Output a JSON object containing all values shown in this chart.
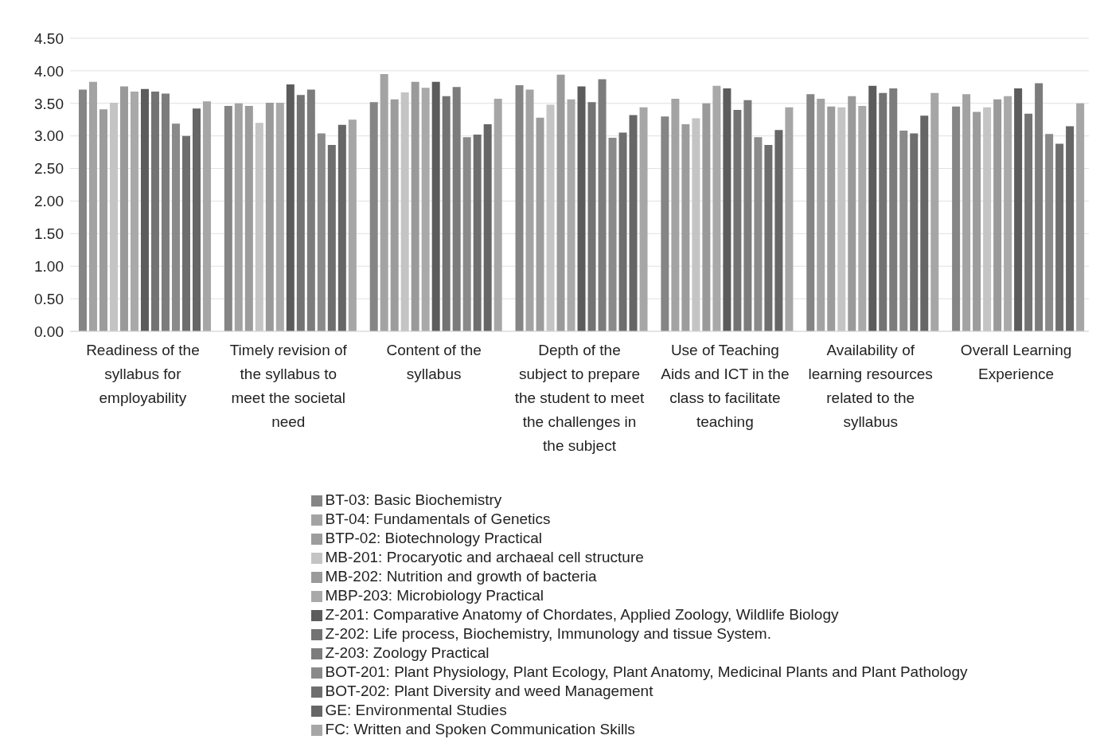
{
  "chart_data": {
    "type": "bar",
    "categories": [
      "Readiness of the syllabus for employability",
      "Timely revision of the syllabus to meet the societal need",
      "Content of the syllabus",
      "Depth of the subject to prepare the student to meet the challenges in the subject",
      "Use of Teaching Aids and ICT in the class to facilitate teaching",
      "Availability of learning resources related to the syllabus",
      "Overall Learning Experience"
    ],
    "ylim": [
      0,
      4.5
    ],
    "yticks": [
      {
        "value": 0,
        "label": "0.00"
      },
      {
        "value": 0.5,
        "label": "0.50"
      },
      {
        "value": 1,
        "label": "1.00"
      },
      {
        "value": 1.5,
        "label": "1.50"
      },
      {
        "value": 2,
        "label": "2.00"
      },
      {
        "value": 2.5,
        "label": "2.50"
      },
      {
        "value": 3,
        "label": "3.00"
      },
      {
        "value": 3.5,
        "label": "3.50"
      },
      {
        "value": 4,
        "label": "4.00"
      },
      {
        "value": 4.5,
        "label": "4.50"
      }
    ],
    "grid": "y",
    "legend": "bottom",
    "series": [
      {
        "name": "BT-03: Basic Biochemistry",
        "color": "#858585",
        "values": [
          3.71,
          3.46,
          3.52,
          3.78,
          3.3,
          3.64,
          3.45
        ]
      },
      {
        "name": "BT-04: Fundamentals of Genetics",
        "color": "#a3a3a3",
        "values": [
          3.83,
          3.5,
          3.95,
          3.71,
          3.57,
          3.57,
          3.64
        ]
      },
      {
        "name": "BTP-02: Biotechnology Practical",
        "color": "#9c9c9c",
        "values": [
          3.41,
          3.46,
          3.56,
          3.28,
          3.18,
          3.45,
          3.37
        ]
      },
      {
        "name": "MB-201: Procaryotic and archaeal cell structure",
        "color": "#c4c4c4",
        "values": [
          3.51,
          3.2,
          3.67,
          3.48,
          3.27,
          3.44,
          3.44
        ]
      },
      {
        "name": "MB-202: Nutrition and growth of bacteria",
        "color": "#9a9a9a",
        "values": [
          3.76,
          3.51,
          3.83,
          3.94,
          3.5,
          3.61,
          3.56
        ]
      },
      {
        "name": "MBP-203: Microbiology Practical",
        "color": "#a9a9a9",
        "values": [
          3.68,
          3.51,
          3.74,
          3.56,
          3.77,
          3.46,
          3.61
        ]
      },
      {
        "name": "Z-201: Comparative Anatomy of Chordates, Applied Zoology, Wildlife Biology",
        "color": "#5c5c5c",
        "values": [
          3.72,
          3.79,
          3.83,
          3.76,
          3.73,
          3.77,
          3.73
        ]
      },
      {
        "name": "Z-202: Life process, Biochemistry, Immunology and tissue System.",
        "color": "#737373",
        "values": [
          3.68,
          3.63,
          3.61,
          3.52,
          3.4,
          3.66,
          3.34
        ]
      },
      {
        "name": "Z-203: Zoology Practical",
        "color": "#7c7c7c",
        "values": [
          3.65,
          3.71,
          3.75,
          3.87,
          3.55,
          3.73,
          3.81
        ]
      },
      {
        "name": "BOT-201: Plant Physiology, Plant Ecology, Plant Anatomy, Medicinal Plants and Plant Pathology",
        "color": "#8a8a8a",
        "values": [
          3.19,
          3.04,
          2.98,
          2.97,
          2.98,
          3.08,
          3.03
        ]
      },
      {
        "name": "BOT-202: Plant Diversity and weed Management",
        "color": "#6e6e6e",
        "values": [
          3.0,
          2.86,
          3.02,
          3.05,
          2.86,
          3.04,
          2.88
        ]
      },
      {
        "name": "GE: Environmental Studies",
        "color": "#666666",
        "values": [
          3.42,
          3.17,
          3.18,
          3.32,
          3.09,
          3.31,
          3.15
        ]
      },
      {
        "name": "FC: Written and Spoken Communication Skills",
        "color": "#a6a6a6",
        "values": [
          3.53,
          3.25,
          3.57,
          3.44,
          3.44,
          3.66,
          3.5
        ]
      }
    ]
  }
}
